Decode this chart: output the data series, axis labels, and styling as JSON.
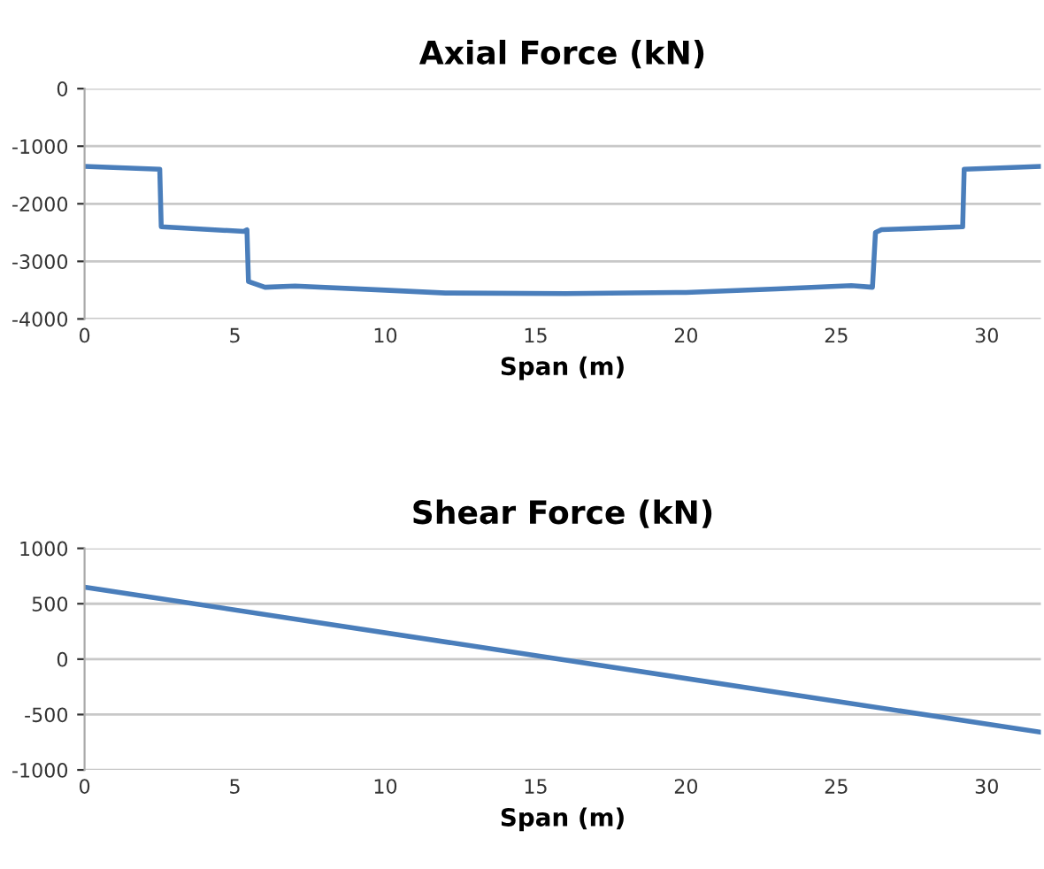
{
  "chart_data": [
    {
      "type": "line",
      "title": "Axial Force (kN)",
      "xlabel": "Span (m)",
      "series": [
        {
          "color": "#4a7ebb",
          "x": [
            0,
            2.5,
            2.55,
            5.3,
            5.4,
            5.45,
            6,
            7,
            10,
            12,
            16,
            20,
            23,
            25.5,
            26.2,
            26.3,
            26.5,
            29.2,
            29.25,
            31.8
          ],
          "values": [
            -1350,
            -1400,
            -2400,
            -2480,
            -2450,
            -3350,
            -3450,
            -3430,
            -3500,
            -3550,
            -3560,
            -3540,
            -3480,
            -3420,
            -3450,
            -2500,
            -2450,
            -2400,
            -1400,
            -1350
          ]
        }
      ],
      "xlim": [
        0,
        31.8
      ],
      "xticks": [
        0,
        5,
        10,
        15,
        20,
        25,
        30
      ],
      "ylim": [
        -4000,
        0
      ],
      "yticks": [
        {
          "value": -4000,
          "label": "-4000"
        },
        {
          "value": -3000,
          "label": "-3000"
        },
        {
          "value": -2000,
          "label": "-2000"
        },
        {
          "value": -1000,
          "label": "-1000"
        },
        {
          "value": 0,
          "label": "0"
        }
      ],
      "grid": "y",
      "legend": false
    },
    {
      "type": "line",
      "title": "Shear Force (kN)",
      "xlabel": "Span (m)",
      "series": [
        {
          "color": "#4a7ebb",
          "x": [
            0,
            31.8
          ],
          "values": [
            650,
            -660
          ]
        }
      ],
      "xlim": [
        0,
        31.8
      ],
      "xticks": [
        0,
        5,
        10,
        15,
        20,
        25,
        30
      ],
      "ylim": [
        -1000,
        1000
      ],
      "yticks": [
        -1000,
        -500,
        0,
        500,
        1000
      ],
      "grid": "y",
      "legend": false
    }
  ]
}
